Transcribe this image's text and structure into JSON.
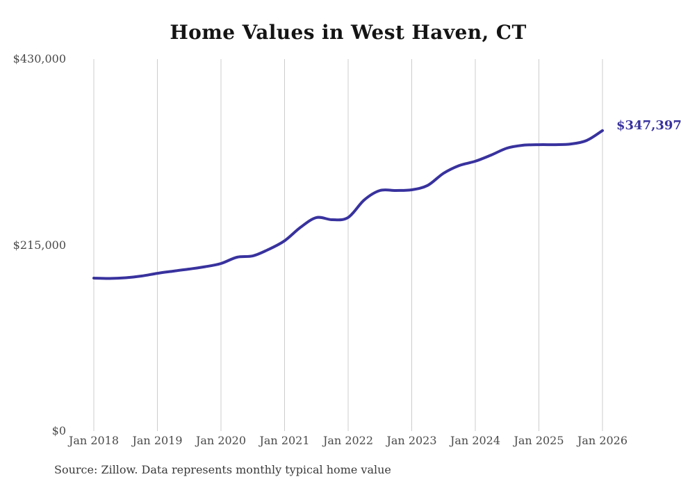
{
  "page": {
    "title": "Home Values in West Haven, CT",
    "end_value_label": "$347,397",
    "source_note": "Source: Zillow. Data represents monthly typical home value"
  },
  "colors": {
    "line": "#38329e",
    "grid": "#cccccc",
    "title_text": "#141414",
    "axis_text": "#4a4a4a",
    "source_text": "#3a3a3a",
    "background": "#ffffff"
  },
  "chart_data": {
    "type": "line",
    "title": "Home Values in West Haven, CT",
    "x": [
      "2018-01",
      "2018-04",
      "2018-07",
      "2018-10",
      "2019-01",
      "2019-04",
      "2019-07",
      "2019-10",
      "2020-01",
      "2020-04",
      "2020-07",
      "2020-10",
      "2021-01",
      "2021-04",
      "2021-07",
      "2021-10",
      "2022-01",
      "2022-04",
      "2022-07",
      "2022-10",
      "2023-01",
      "2023-04",
      "2023-07",
      "2023-10",
      "2024-01",
      "2024-04",
      "2024-07",
      "2024-10",
      "2025-01",
      "2025-04",
      "2025-07",
      "2025-10",
      "2026-01"
    ],
    "values": [
      176800,
      176400,
      177200,
      179200,
      182400,
      184900,
      187300,
      190000,
      193700,
      200900,
      202500,
      210000,
      220000,
      235500,
      246800,
      244300,
      246900,
      267000,
      278100,
      278100,
      278900,
      284000,
      298000,
      307000,
      311900,
      319100,
      327100,
      330400,
      331100,
      331100,
      331900,
      335900,
      347397
    ],
    "xlabel": "",
    "ylabel": "",
    "ylim": [
      0,
      430000
    ],
    "yticks": [
      {
        "value": 430000,
        "label": "$430,000"
      },
      {
        "value": 215000,
        "label": "$215,000"
      },
      {
        "value": 0,
        "label": "$0"
      }
    ],
    "xticks": [
      {
        "x": "2018-01",
        "label": "Jan 2018"
      },
      {
        "x": "2019-01",
        "label": "Jan 2019"
      },
      {
        "x": "2020-01",
        "label": "Jan 2020"
      },
      {
        "x": "2021-01",
        "label": "Jan 2021"
      },
      {
        "x": "2022-01",
        "label": "Jan 2022"
      },
      {
        "x": "2023-01",
        "label": "Jan 2023"
      },
      {
        "x": "2024-01",
        "label": "Jan 2024"
      },
      {
        "x": "2025-01",
        "label": "Jan 2025"
      },
      {
        "x": "2026-01",
        "label": "Jan 2026"
      }
    ],
    "grid": "vertical-only",
    "legend": "none",
    "annotation": {
      "label": "$347,397",
      "x": "2026-01",
      "value": 347397
    }
  }
}
